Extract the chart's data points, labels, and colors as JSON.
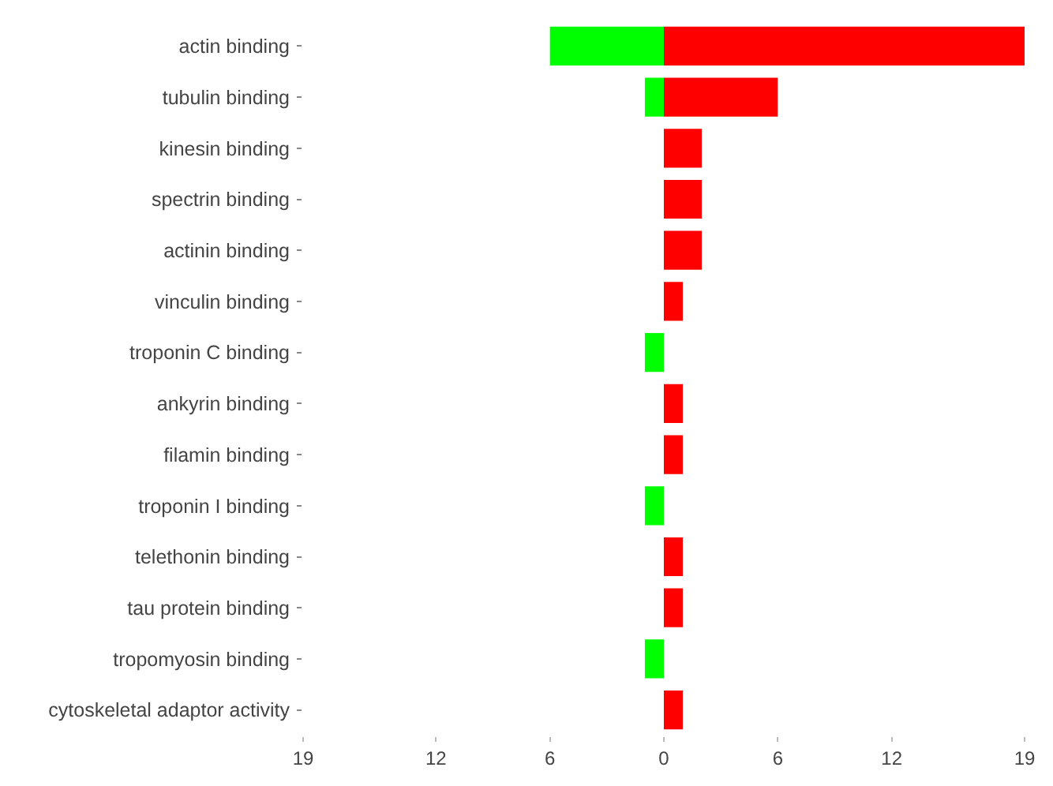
{
  "chart_data": {
    "type": "bar",
    "orientation": "horizontal",
    "stacked": true,
    "categories": [
      "actin binding",
      "tubulin binding",
      "kinesin binding",
      "spectrin binding",
      "actinin binding",
      "vinculin binding",
      "troponin C binding",
      "ankyrin binding",
      "filamin binding",
      "troponin I binding",
      "telethonin binding",
      "tau protein binding",
      "tropomyosin binding",
      "cytoskeletal adaptor activity"
    ],
    "series": [
      {
        "color": "#00ff00",
        "values": [
          -6,
          -1,
          null,
          null,
          null,
          null,
          -1,
          null,
          null,
          -1,
          null,
          null,
          -1,
          null
        ]
      },
      {
        "color": "#ff0000",
        "values": [
          19,
          6,
          2,
          2,
          2,
          1,
          null,
          1,
          1,
          null,
          1,
          1,
          null,
          1
        ]
      }
    ],
    "xlim": [
      -19,
      19
    ],
    "xticks": [
      {
        "value": -19,
        "label": "19"
      },
      {
        "value": -12,
        "label": "12"
      },
      {
        "value": -6,
        "label": "6"
      },
      0,
      6,
      12,
      19
    ]
  }
}
